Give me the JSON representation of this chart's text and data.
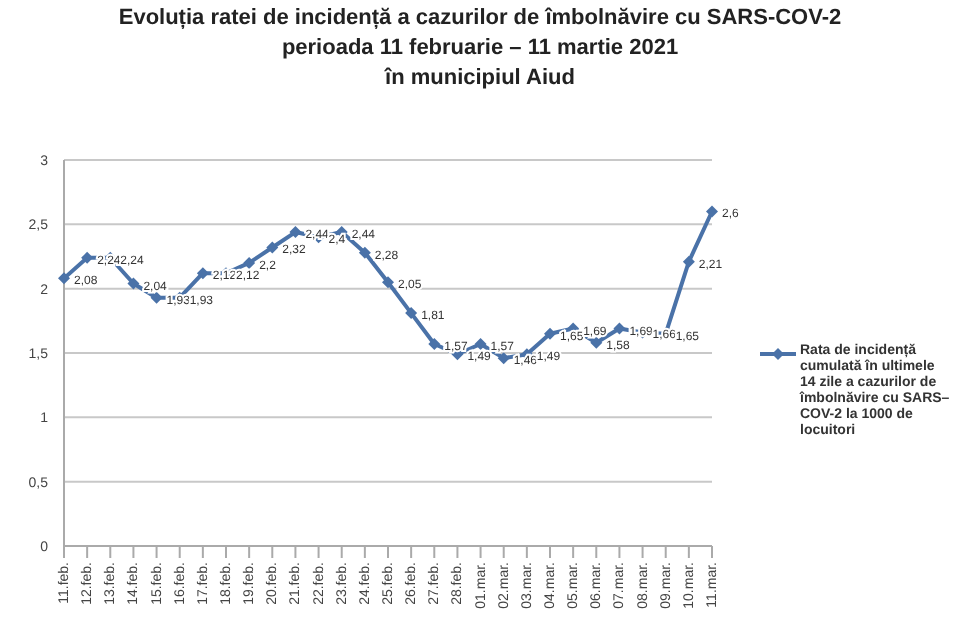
{
  "chart_data": {
    "type": "line",
    "title": "Evoluția ratei de incidență a cazurilor de îmbolnăvire cu SARS-COV-2\nperioada 11 februarie – 11 martie 2021\nîn municipiul Aiud",
    "categories": [
      "11.feb.",
      "12.feb.",
      "13.feb.",
      "14.feb.",
      "15.feb.",
      "16.feb.",
      "17.feb.",
      "18.feb.",
      "19.feb.",
      "20.feb.",
      "21.feb.",
      "22.feb.",
      "23.feb.",
      "24.feb.",
      "25.feb.",
      "26.feb.",
      "27.feb.",
      "28.feb.",
      "01.mar.",
      "02.mar.",
      "03.mar.",
      "04.mar.",
      "05.mar.",
      "06.mar.",
      "07.mar.",
      "08.mar.",
      "09.mar.",
      "10.mar.",
      "11.mar."
    ],
    "series": [
      {
        "name": "Rata de incidență cumulată în ultimele 14 zile a cazurilor de îmbolnăvire cu SARS–COV-2 la 1000 de locuitori",
        "color": "#4a72a8",
        "values": [
          2.08,
          2.24,
          2.24,
          2.04,
          1.93,
          1.93,
          2.12,
          2.12,
          2.2,
          2.32,
          2.44,
          2.4,
          2.44,
          2.28,
          2.05,
          1.81,
          1.57,
          1.49,
          1.57,
          1.46,
          1.49,
          1.65,
          1.69,
          1.58,
          1.69,
          1.66,
          1.65,
          2.21,
          2.6
        ],
        "value_labels": [
          "2,08",
          "2,24",
          "2,24",
          "2,04",
          "1,93",
          "1,93",
          "2,12",
          "2,12",
          "2,2",
          "2,32",
          "2,44",
          "2,4",
          "2,44",
          "2,28",
          "2,05",
          "1,81",
          "1,57",
          "1,49",
          "1,57",
          "1,46",
          "1,49",
          "1,65",
          "1,69",
          "1,58",
          "1,69",
          "1,66",
          "1,65",
          "2,21",
          "2,6"
        ]
      }
    ],
    "ylim": [
      0,
      3
    ],
    "yticks": [
      {
        "value": 0,
        "label": "0"
      },
      {
        "value": 0.5,
        "label": "0,5"
      },
      {
        "value": 1,
        "label": "1"
      },
      {
        "value": 1.5,
        "label": "1,5"
      },
      {
        "value": 2,
        "label": "2"
      },
      {
        "value": 2.5,
        "label": "2,5"
      },
      {
        "value": 3,
        "label": "3"
      }
    ],
    "grid": "y",
    "legend": "right",
    "marker": "diamond",
    "line_style": "solid"
  }
}
